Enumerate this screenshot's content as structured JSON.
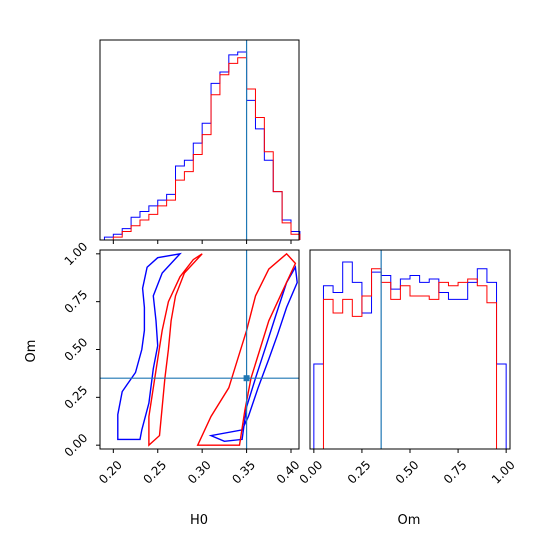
{
  "chart_data": {
    "type": "corner",
    "parameters": [
      "H0",
      "Om"
    ],
    "truth": {
      "H0": 0.35,
      "Om": 0.35
    },
    "colors": {
      "chain_a": "#0000ff",
      "chain_b": "#ff0000",
      "truth": "#1f77b4"
    },
    "panels": {
      "h0_hist": {
        "type": "histogram",
        "xlim": [
          0.185,
          0.409
        ],
        "bin_edges": [
          0.19,
          0.2,
          0.21,
          0.22,
          0.23,
          0.24,
          0.25,
          0.26,
          0.27,
          0.28,
          0.29,
          0.3,
          0.31,
          0.32,
          0.33,
          0.34,
          0.35,
          0.36,
          0.37,
          0.38,
          0.39,
          0.4,
          0.41
        ],
        "series": [
          {
            "color": "blue",
            "counts": [
              1,
              2,
              4,
              8,
              10,
              12,
              14,
              16,
              26,
              28,
              34,
              41,
              55,
              59,
              65,
              66,
              49,
              39,
              28,
              17,
              7,
              3
            ]
          },
          {
            "color": "red",
            "counts": [
              0,
              1,
              3,
              5,
              7,
              9,
              12,
              14,
              21,
              24,
              30,
              37,
              51,
              58,
              62,
              64,
              53,
              43,
              31,
              17,
              6,
              2
            ]
          }
        ],
        "x_ticks": [
          0.2,
          0.25,
          0.3,
          0.35,
          0.4
        ]
      },
      "om_hist": {
        "type": "histogram",
        "xlim": [
          -0.02,
          1.02
        ],
        "bin_edges": [
          0.0,
          0.05,
          0.1,
          0.15,
          0.2,
          0.25,
          0.3,
          0.35,
          0.4,
          0.45,
          0.5,
          0.55,
          0.6,
          0.65,
          0.7,
          0.75,
          0.8,
          0.85,
          0.9,
          0.95,
          1.0
        ],
        "series": [
          {
            "color": "blue",
            "counts": [
              25,
              48,
              46,
              55,
              49,
              40,
              52,
              51,
              47,
              50,
              51,
              49,
              50,
              46,
              44,
              44,
              49,
              53,
              49,
              25
            ]
          },
          {
            "color": "red",
            "counts": [
              0,
              44,
              40,
              44,
              39,
              45,
              53,
              49,
              44,
              48,
              45,
              45,
              44,
              49,
              48,
              49,
              50,
              48,
              43,
              0
            ]
          }
        ],
        "x_ticks": [
          0.0,
          0.25,
          0.5,
          0.75,
          1.0
        ],
        "tick_labels": [
          "0.00",
          "0.25",
          "0.50",
          "0.75",
          "1.00"
        ],
        "xlabel": "Om"
      },
      "joint": {
        "type": "contour",
        "xlim": [
          0.185,
          0.409
        ],
        "ylim": [
          -0.02,
          1.02
        ],
        "x_ticks": [
          0.2,
          0.25,
          0.3,
          0.35,
          0.4
        ],
        "x_tick_labels": [
          "0.20",
          "0.25",
          "0.30",
          "0.35",
          "0.40"
        ],
        "y_ticks": [
          0.0,
          0.25,
          0.5,
          0.75,
          1.0
        ],
        "y_tick_labels": [
          "0.00",
          "0.25",
          "0.50",
          "0.75",
          "1.00"
        ],
        "xlabel": "H0",
        "ylabel": "Om",
        "contours": [
          {
            "color": "blue",
            "points": [
              [
                0.205,
                0.03
              ],
              [
                0.205,
                0.16
              ],
              [
                0.21,
                0.28
              ],
              [
                0.225,
                0.38
              ],
              [
                0.232,
                0.5
              ],
              [
                0.235,
                0.6
              ],
              [
                0.235,
                0.72
              ],
              [
                0.233,
                0.82
              ],
              [
                0.238,
                0.93
              ],
              [
                0.25,
                0.98
              ],
              [
                0.275,
                1.0
              ],
              [
                0.255,
                0.9
              ],
              [
                0.245,
                0.78
              ],
              [
                0.248,
                0.65
              ],
              [
                0.25,
                0.52
              ],
              [
                0.245,
                0.4
              ],
              [
                0.24,
                0.22
              ],
              [
                0.232,
                0.08
              ],
              [
                0.23,
                0.03
              ]
            ]
          },
          {
            "color": "red",
            "points": [
              [
                0.24,
                0.0
              ],
              [
                0.24,
                0.15
              ],
              [
                0.245,
                0.3
              ],
              [
                0.25,
                0.45
              ],
              [
                0.255,
                0.6
              ],
              [
                0.262,
                0.75
              ],
              [
                0.275,
                0.88
              ],
              [
                0.29,
                0.97
              ],
              [
                0.3,
                1.0
              ],
              [
                0.28,
                0.9
              ],
              [
                0.27,
                0.78
              ],
              [
                0.265,
                0.65
              ],
              [
                0.262,
                0.5
              ],
              [
                0.258,
                0.35
              ],
              [
                0.255,
                0.2
              ],
              [
                0.252,
                0.05
              ]
            ]
          },
          {
            "color": "blue",
            "points": [
              [
                0.31,
                0.05
              ],
              [
                0.325,
                0.02
              ],
              [
                0.345,
                0.03
              ],
              [
                0.35,
                0.2
              ],
              [
                0.36,
                0.35
              ],
              [
                0.372,
                0.52
              ],
              [
                0.383,
                0.68
              ],
              [
                0.395,
                0.85
              ],
              [
                0.405,
                0.93
              ],
              [
                0.407,
                0.85
              ],
              [
                0.395,
                0.72
              ],
              [
                0.385,
                0.58
              ],
              [
                0.375,
                0.45
              ],
              [
                0.363,
                0.3
              ],
              [
                0.352,
                0.15
              ],
              [
                0.345,
                0.08
              ]
            ]
          },
          {
            "color": "red",
            "points": [
              [
                0.295,
                0.0
              ],
              [
                0.31,
                0.15
              ],
              [
                0.33,
                0.3
              ],
              [
                0.34,
                0.45
              ],
              [
                0.35,
                0.6
              ],
              [
                0.36,
                0.78
              ],
              [
                0.375,
                0.92
              ],
              [
                0.395,
                1.0
              ],
              [
                0.405,
                0.95
              ],
              [
                0.39,
                0.8
              ],
              [
                0.375,
                0.65
              ],
              [
                0.365,
                0.5
              ],
              [
                0.355,
                0.35
              ],
              [
                0.348,
                0.18
              ],
              [
                0.342,
                0.0
              ]
            ]
          }
        ]
      }
    }
  }
}
